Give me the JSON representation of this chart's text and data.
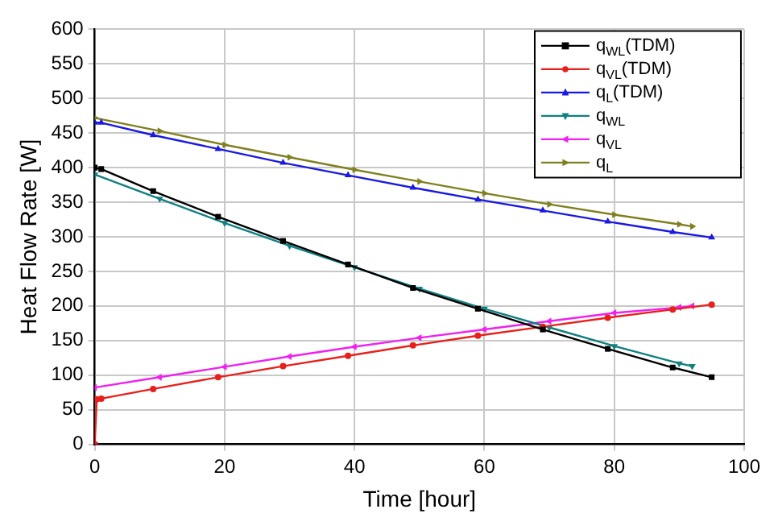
{
  "chart_data": {
    "type": "line",
    "xlabel": "Time [hour]",
    "ylabel": "Heat Flow Rate [W]",
    "xlim": [
      0,
      100
    ],
    "xticks": [
      0,
      20,
      40,
      60,
      80,
      100
    ],
    "ylim": [
      0,
      600
    ],
    "yticks": [
      0,
      50,
      100,
      150,
      200,
      250,
      300,
      350,
      400,
      450,
      500,
      550,
      600
    ],
    "grid": true,
    "legend": "top right",
    "line_style": "solid",
    "series": [
      {
        "name": "q$_{WL}$(TDM)",
        "color": "#000000",
        "marker": "square",
        "x": [
          0,
          1,
          9,
          19,
          29,
          39,
          49,
          59,
          69,
          79,
          89,
          95
        ],
        "values": [
          400,
          398,
          366,
          329,
          294,
          260,
          226,
          196,
          166,
          138,
          111,
          97
        ]
      },
      {
        "name": "q$_{VL}$(TDM)",
        "color": "#e8201c",
        "marker": "circle",
        "x": [
          0,
          0.3,
          1,
          9,
          19,
          29,
          39,
          49,
          59,
          69,
          79,
          89,
          95
        ],
        "values": [
          0,
          65,
          66,
          80,
          97,
          113,
          128,
          143,
          157,
          170,
          183,
          195,
          202
        ]
      },
      {
        "name": "q$_{L}$(TDM)",
        "color": "#1a1ae0",
        "marker": "triangle",
        "x": [
          0,
          1,
          9,
          19,
          29,
          39,
          49,
          59,
          69,
          79,
          89,
          95
        ],
        "values": [
          465,
          465,
          447,
          427,
          407,
          389,
          371,
          354,
          338,
          322,
          307,
          299
        ]
      },
      {
        "name": "q$_{WL}$",
        "color": "#108080",
        "marker": "triangle-down",
        "x": [
          0,
          10,
          20,
          30,
          40,
          50,
          60,
          70,
          80,
          90,
          92
        ],
        "values": [
          390,
          355,
          320,
          287,
          256,
          225,
          196,
          169,
          142,
          117,
          113
        ]
      },
      {
        "name": "q$_{VL}$",
        "color": "#f020f0",
        "marker": "triangle-left",
        "x": [
          0,
          10,
          20,
          30,
          40,
          50,
          60,
          70,
          80,
          90,
          92
        ],
        "values": [
          82,
          97,
          112,
          127,
          141,
          154,
          166,
          178,
          190,
          198,
          200
        ]
      },
      {
        "name": "q$_{L}$",
        "color": "#808020",
        "marker": "triangle-right",
        "x": [
          0,
          10,
          20,
          30,
          40,
          50,
          60,
          70,
          80,
          90,
          92
        ],
        "values": [
          472,
          453,
          433,
          415,
          397,
          380,
          363,
          347,
          332,
          318,
          315
        ]
      }
    ]
  }
}
